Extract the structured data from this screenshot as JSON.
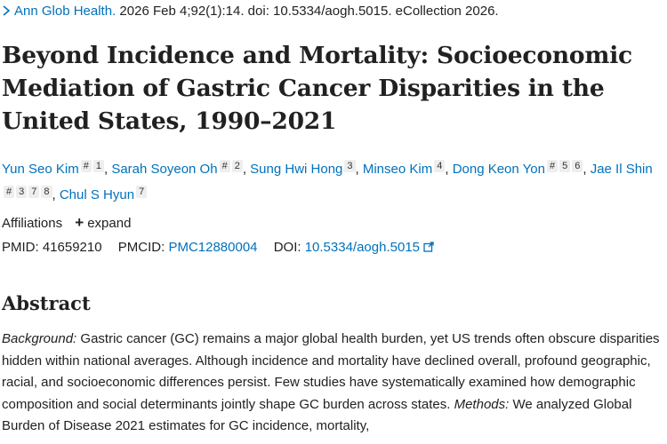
{
  "citation": {
    "journal": "Ann Glob Health.",
    "details": "2026 Feb 4;92(1):14. doi: 10.5334/aogh.5015. eCollection 2026."
  },
  "title": "Beyond Incidence and Mortality: Socioeconomic Mediation of Gastric Cancer Disparities in the United States, 1990–2021",
  "authors": [
    {
      "name": "Yun Seo Kim",
      "marks": [
        "#",
        "1"
      ]
    },
    {
      "name": "Sarah Soyeon Oh",
      "marks": [
        "#",
        "2"
      ]
    },
    {
      "name": "Sung Hwi Hong",
      "marks": [
        "3"
      ]
    },
    {
      "name": "Minseo Kim",
      "marks": [
        "4"
      ]
    },
    {
      "name": "Dong Keon Yon",
      "marks": [
        "#",
        "5",
        "6"
      ]
    },
    {
      "name": "Jae Il Shin",
      "marks": [
        "#",
        "3",
        "7",
        "8"
      ]
    },
    {
      "name": "Chul S Hyun",
      "marks": [
        "7"
      ]
    }
  ],
  "affiliations": {
    "label": "Affiliations",
    "expand_label": "expand"
  },
  "identifiers": {
    "pmid_label": "PMID:",
    "pmid": "41659210",
    "pmcid_label": "PMCID:",
    "pmcid": "PMC12880004",
    "doi_label": "DOI:",
    "doi": "10.5334/aogh.5015"
  },
  "abstract": {
    "heading": "Abstract",
    "background_label": "Background:",
    "background_text": " Gastric cancer (GC) remains a major global health burden, yet US trends often obscure disparities hidden within national averages. Although incidence and mortality have declined overall, profound geographic, racial, and socioeconomic differences persist. Few studies have systematically examined how demographic composition and social determinants jointly shape GC burden across states. ",
    "methods_label": "Methods:",
    "methods_text": " We analyzed Global Burden of Disease 2021 estimates for GC incidence, mortality,"
  },
  "colors": {
    "link": "#0071bc",
    "text": "#212121",
    "badge_bg": "#eeeeee"
  },
  "icons": {
    "citation": "chevron-right-icon",
    "affiliations": "plus-icon",
    "doi": "external-link-icon"
  }
}
